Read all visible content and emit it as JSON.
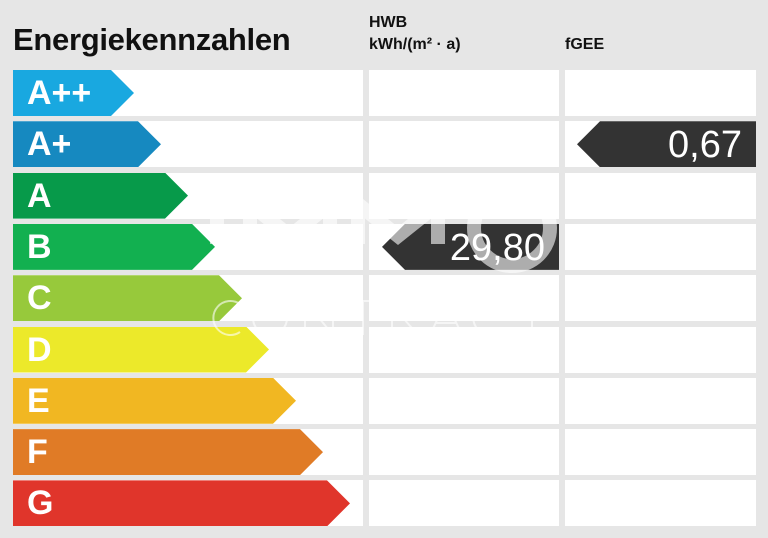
{
  "title": "Energiekennzahlen",
  "columns": {
    "hwb_label": "HWB",
    "hwb_unit": "kWh/(m² · a)",
    "fgee_label": "fGEE"
  },
  "classes": [
    {
      "label": "A++",
      "color": "#19a8e0"
    },
    {
      "label": "A+",
      "color": "#1689c0"
    },
    {
      "label": "A",
      "color": "#079a4a"
    },
    {
      "label": "B",
      "color": "#12b050"
    },
    {
      "label": "C",
      "color": "#97c93b"
    },
    {
      "label": "D",
      "color": "#ece92a"
    },
    {
      "label": "E",
      "color": "#f1b722"
    },
    {
      "label": "F",
      "color": "#e07b26"
    },
    {
      "label": "G",
      "color": "#e0352b"
    }
  ],
  "hwb": {
    "value": "29,80",
    "class": "B"
  },
  "fgee": {
    "value": "0,67",
    "class": "A+"
  },
  "watermark": {
    "line1": "IMMO",
    "line2": "CONTRACT"
  }
}
